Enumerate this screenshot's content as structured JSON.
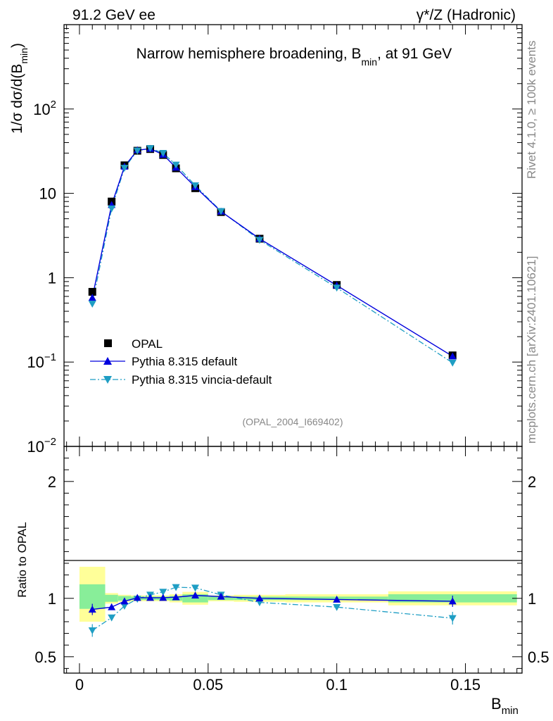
{
  "header": {
    "left": "91.2 GeV ee",
    "right_gamma": "γ*/Z (Hadronic)"
  },
  "side_text": {
    "rivet": "Rivet 4.1.0, ≥ 100k events",
    "mcplots": "mcplots.cern.ch [arXiv:2401.10621]"
  },
  "colors": {
    "data": "#000000",
    "pythia_default": "#0000dd",
    "vincia": "#1f9ec4",
    "band_green": "#88ee99",
    "band_yellow": "#ffff99"
  },
  "chart_data": [
    {
      "type": "scatter",
      "title_main": "Narrow hemisphere broadening, B",
      "title_sub": "min",
      "title_tail": ", at 91 GeV",
      "ylabel_main": "1/σ  dσ/d(B",
      "ylabel_sub": "min",
      "ylabel_tail": ")",
      "yscale": "log",
      "ylim": [
        0.01,
        1000
      ],
      "y_ticks": [
        {
          "value": 0.01,
          "base": "10",
          "exp": "−2"
        },
        {
          "value": 0.1,
          "base": "10",
          "exp": "−1"
        },
        {
          "value": 1,
          "label": "1"
        },
        {
          "value": 10,
          "label": "10"
        },
        {
          "value": 100,
          "base": "10",
          "exp": "2"
        }
      ],
      "xlim": [
        -0.006,
        0.172
      ],
      "x": [
        0.005,
        0.0125,
        0.0175,
        0.0225,
        0.0275,
        0.0325,
        0.0375,
        0.045,
        0.055,
        0.07,
        0.1,
        0.145
      ],
      "series": [
        {
          "name": "OPAL",
          "marker": "square",
          "values": [
            0.68,
            8.0,
            21.5,
            32.0,
            33.5,
            28.5,
            19.8,
            11.5,
            6.0,
            2.9,
            0.82,
            0.12
          ]
        },
        {
          "name": "Pythia 8.315 default",
          "marker": "triangle-up",
          "line": "solid",
          "values": [
            0.58,
            7.3,
            20.8,
            32.5,
            33.8,
            28.8,
            20.2,
            11.9,
            6.1,
            2.9,
            0.81,
            0.117
          ]
        },
        {
          "name": "Pythia 8.315 vincia-default",
          "marker": "triangle-down",
          "line": "dashdot",
          "values": [
            0.49,
            6.6,
            20.0,
            32.0,
            34.3,
            30.0,
            21.8,
            12.4,
            6.15,
            2.8,
            0.76,
            0.098
          ]
        }
      ],
      "legend_position": "bottom-left",
      "annotation": "(OPAL_2004_I669402)"
    },
    {
      "type": "scatter",
      "ylabel": "Ratio to OPAL",
      "xlabel_main": "B",
      "xlabel_sub": "min",
      "ylim": [
        0.36,
        2.3
      ],
      "y_ticks": [
        {
          "value": 0.5,
          "label": "0.5"
        },
        {
          "value": 1,
          "label": "1"
        },
        {
          "value": 2,
          "label": "2"
        }
      ],
      "x_ticks": [
        {
          "value": 0,
          "label": "0"
        },
        {
          "value": 0.05,
          "label": "0.05"
        },
        {
          "value": 0.1,
          "label": "0.1"
        },
        {
          "value": 0.15,
          "label": "0.15"
        }
      ],
      "bins": [
        0,
        0.01,
        0.015,
        0.02,
        0.025,
        0.03,
        0.035,
        0.04,
        0.05,
        0.06,
        0.08,
        0.12,
        0.17
      ],
      "band_green": [
        [
          0.91,
          1.12
        ],
        [
          0.97,
          1.03
        ],
        [
          0.98,
          1.02
        ],
        [
          0.985,
          1.015
        ],
        [
          0.985,
          1.015
        ],
        [
          0.985,
          1.015
        ],
        [
          0.98,
          1.02
        ],
        [
          0.965,
          1.035
        ],
        [
          0.985,
          1.015
        ],
        [
          0.985,
          1.015
        ],
        [
          0.985,
          1.015
        ],
        [
          0.965,
          1.035
        ]
      ],
      "band_yellow": [
        [
          0.8,
          1.27
        ],
        [
          0.955,
          1.045
        ],
        [
          0.97,
          1.03
        ],
        [
          0.975,
          1.025
        ],
        [
          0.975,
          1.025
        ],
        [
          0.975,
          1.025
        ],
        [
          0.965,
          1.035
        ],
        [
          0.945,
          1.055
        ],
        [
          0.975,
          1.025
        ],
        [
          0.97,
          1.03
        ],
        [
          0.965,
          1.035
        ],
        [
          0.94,
          1.06
        ]
      ],
      "x": [
        0.005,
        0.0125,
        0.0175,
        0.0225,
        0.0275,
        0.0325,
        0.0375,
        0.045,
        0.055,
        0.07,
        0.1,
        0.145
      ],
      "series": [
        {
          "name": "Pythia 8.315 default",
          "values": [
            0.905,
            0.925,
            0.975,
            1.005,
            1.005,
            1.005,
            1.01,
            1.025,
            1.015,
            1.0,
            0.99,
            0.975
          ]
        },
        {
          "name": "Pythia 8.315 vincia-default",
          "values": [
            0.725,
            0.835,
            0.935,
            0.995,
            1.03,
            1.055,
            1.095,
            1.09,
            1.03,
            0.965,
            0.925,
            0.83
          ]
        }
      ]
    }
  ]
}
